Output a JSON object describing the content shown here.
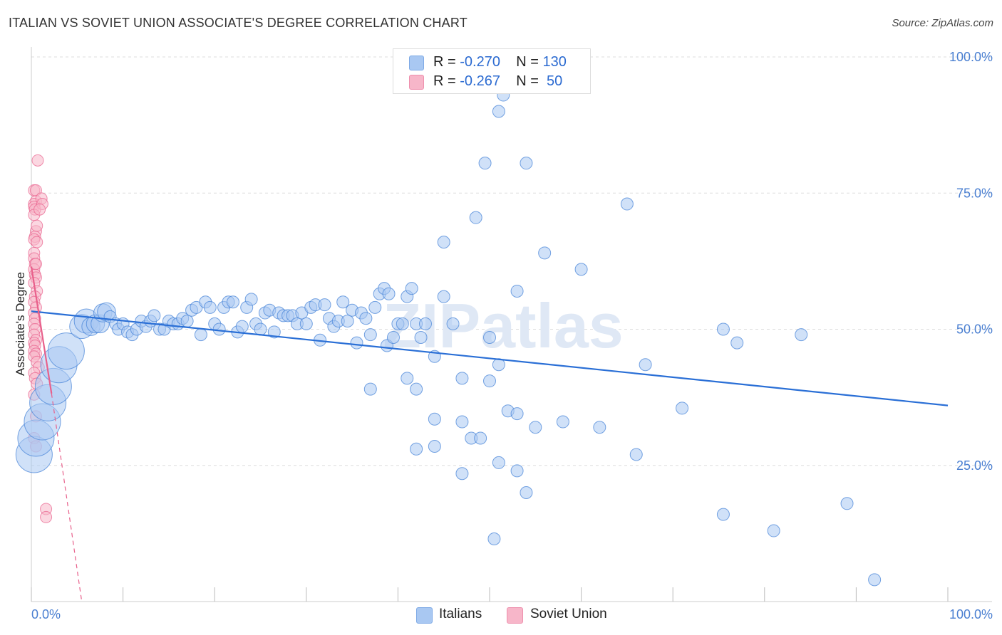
{
  "title": "ITALIAN VS SOVIET UNION ASSOCIATE'S DEGREE CORRELATION CHART",
  "source": "Source: ZipAtlas.com",
  "watermark": "ZIPatlas",
  "legend": {
    "rows": [
      {
        "r_label": "R =",
        "r_value": "-0.270",
        "n_label": "N =",
        "n_value": "130",
        "color": "#a9c8f2"
      },
      {
        "r_label": "R =",
        "r_value": "-0.267",
        "n_label": "N =",
        "n_value": " 50",
        "color": "#f7b6c9"
      }
    ]
  },
  "bottom_legend": [
    {
      "label": "Italians",
      "color": "#a9c8f2"
    },
    {
      "label": "Soviet Union",
      "color": "#f7b6c9"
    }
  ],
  "chart_data": {
    "type": "scatter",
    "title": "ITALIAN VS SOVIET UNION ASSOCIATE'S DEGREE CORRELATION CHART",
    "xlabel": "",
    "ylabel": "Associate's Degree",
    "xlim": [
      0,
      100
    ],
    "ylim": [
      0,
      100
    ],
    "x_tick_labels": [
      "0.0%",
      "100.0%"
    ],
    "y_tick_labels": [
      "25.0%",
      "50.0%",
      "75.0%",
      "100.0%"
    ],
    "y_tick_values": [
      25,
      50,
      75,
      100
    ],
    "grid": true,
    "series": [
      {
        "name": "Italians",
        "color": "#4a86d8",
        "fill": "#a9c8f2",
        "trend": {
          "x": [
            0,
            100
          ],
          "y": [
            53.3,
            36.0
          ]
        },
        "points": [
          [
            0.3,
            27,
            3
          ],
          [
            0.5,
            30,
            3
          ],
          [
            1.2,
            33,
            3
          ],
          [
            1.8,
            36.5,
            3
          ],
          [
            2.4,
            39.5,
            3
          ],
          [
            3.0,
            43.5,
            3
          ],
          [
            3.8,
            46,
            3
          ],
          [
            5.5,
            50.5,
            2
          ],
          [
            6,
            51.5,
            2
          ],
          [
            6.5,
            50.5,
            1.5
          ],
          [
            7,
            51,
            1.5
          ],
          [
            7.5,
            51,
            1.5
          ],
          [
            7.8,
            53,
            1.5
          ],
          [
            8.2,
            53.2,
            1.5
          ],
          [
            8.6,
            52.3,
            1
          ],
          [
            9.2,
            51,
            1
          ],
          [
            9.5,
            50,
            1
          ],
          [
            10,
            51,
            1
          ],
          [
            10.5,
            49.5,
            1
          ],
          [
            11,
            49,
            1
          ],
          [
            11.5,
            50,
            1
          ],
          [
            12,
            51.5,
            1
          ],
          [
            12.5,
            50.5,
            1
          ],
          [
            13,
            51.5,
            1
          ],
          [
            13.4,
            52.5,
            1
          ],
          [
            14,
            50,
            1
          ],
          [
            14.5,
            50,
            1
          ],
          [
            15,
            51.5,
            1
          ],
          [
            15.5,
            51,
            1
          ],
          [
            16,
            51,
            1
          ],
          [
            16.5,
            52,
            1
          ],
          [
            17,
            51.5,
            1
          ],
          [
            17.5,
            53.5,
            1
          ],
          [
            18,
            54,
            1
          ],
          [
            18.5,
            49,
            1
          ],
          [
            19,
            55,
            1
          ],
          [
            19.5,
            54,
            1
          ],
          [
            20,
            51,
            1
          ],
          [
            20.5,
            50,
            1
          ],
          [
            21,
            54,
            1
          ],
          [
            21.5,
            55,
            1
          ],
          [
            22,
            55,
            1
          ],
          [
            22.5,
            49.5,
            1
          ],
          [
            23,
            50.5,
            1
          ],
          [
            23.5,
            54,
            1
          ],
          [
            24,
            55.5,
            1
          ],
          [
            24.5,
            51,
            1
          ],
          [
            25,
            50,
            1
          ],
          [
            25.5,
            53,
            1
          ],
          [
            26,
            53.5,
            1
          ],
          [
            26.5,
            49.5,
            1
          ],
          [
            27,
            53,
            1
          ],
          [
            27.5,
            52.5,
            1
          ],
          [
            28,
            52.5,
            1
          ],
          [
            28.5,
            52.5,
            1
          ],
          [
            29,
            51,
            1
          ],
          [
            29.5,
            53,
            1
          ],
          [
            30,
            51,
            1
          ],
          [
            30.5,
            54,
            1
          ],
          [
            31,
            54.5,
            1
          ],
          [
            31.5,
            48,
            1
          ],
          [
            32,
            54.5,
            1
          ],
          [
            32.5,
            52,
            1
          ],
          [
            33,
            50.5,
            1
          ],
          [
            33.5,
            51.5,
            1
          ],
          [
            34,
            55,
            1
          ],
          [
            34.5,
            51.5,
            1
          ],
          [
            35,
            53.5,
            1
          ],
          [
            35.5,
            47.5,
            1
          ],
          [
            36,
            53,
            1
          ],
          [
            36.5,
            52,
            1
          ],
          [
            37,
            49,
            1
          ],
          [
            37.5,
            54,
            1
          ],
          [
            38,
            56.5,
            1
          ],
          [
            38.5,
            57.5,
            1
          ],
          [
            38.8,
            47,
            1
          ],
          [
            39,
            56.5,
            1
          ],
          [
            39.5,
            48.5,
            1
          ],
          [
            40,
            51,
            1
          ],
          [
            40.5,
            51,
            1
          ],
          [
            41,
            56,
            1
          ],
          [
            41.5,
            57.5,
            1
          ],
          [
            42,
            51,
            1
          ],
          [
            42.5,
            48.5,
            1
          ],
          [
            43,
            51,
            1
          ],
          [
            44,
            45,
            1
          ],
          [
            45,
            56,
            1
          ],
          [
            46,
            51,
            1
          ],
          [
            37,
            39,
            1
          ],
          [
            41,
            41,
            1
          ],
          [
            42,
            39,
            1
          ],
          [
            47,
            41,
            1
          ],
          [
            50,
            40.5,
            1
          ],
          [
            50,
            48.5,
            1
          ],
          [
            51,
            43.5,
            1
          ],
          [
            44,
            33.5,
            1
          ],
          [
            47,
            33,
            1
          ],
          [
            48,
            30,
            1
          ],
          [
            49,
            30,
            1
          ],
          [
            52,
            35,
            1
          ],
          [
            53,
            34.5,
            1
          ],
          [
            55,
            32,
            1
          ],
          [
            58,
            33,
            1
          ],
          [
            62,
            32,
            1
          ],
          [
            66,
            27,
            1
          ],
          [
            44,
            28.5,
            1
          ],
          [
            42,
            28,
            1
          ],
          [
            47,
            23.5,
            1
          ],
          [
            51,
            25.5,
            1
          ],
          [
            53,
            24,
            1
          ],
          [
            54,
            20,
            1
          ],
          [
            50.5,
            11.5,
            1
          ],
          [
            75.5,
            16,
            1
          ],
          [
            81,
            13,
            1
          ],
          [
            89,
            18,
            1
          ],
          [
            92,
            4,
            1
          ],
          [
            67,
            43.5,
            1
          ],
          [
            71,
            35.5,
            1
          ],
          [
            75.5,
            50,
            1
          ],
          [
            77,
            47.5,
            1
          ],
          [
            84,
            49,
            1
          ],
          [
            65,
            73,
            1
          ],
          [
            60,
            61,
            1
          ],
          [
            53,
            57,
            1
          ],
          [
            49.5,
            80.5,
            1
          ],
          [
            54,
            80.5,
            1
          ],
          [
            51.5,
            93,
            1
          ],
          [
            51,
            90,
            1
          ],
          [
            48.5,
            70.5,
            1
          ],
          [
            45,
            66,
            1
          ],
          [
            56,
            64,
            1
          ]
        ]
      },
      {
        "name": "Soviet Union",
        "color": "#e8608b",
        "fill": "#f7b6c9",
        "trend": {
          "x": [
            0,
            2.2
          ],
          "y": [
            61.5,
            38.2
          ]
        },
        "trend_dashed": {
          "x": [
            2.2,
            5.5
          ],
          "y": [
            38.2,
            0
          ]
        },
        "points": [
          [
            0.3,
            75.5
          ],
          [
            0.5,
            75.5
          ],
          [
            0.5,
            73.5
          ],
          [
            0.3,
            73
          ],
          [
            0.3,
            72.5
          ],
          [
            0.4,
            72
          ],
          [
            0.3,
            71
          ],
          [
            0.5,
            68
          ],
          [
            0.4,
            67
          ],
          [
            0.3,
            66.5
          ],
          [
            0.6,
            66
          ],
          [
            0.3,
            64
          ],
          [
            0.3,
            63
          ],
          [
            0.4,
            62
          ],
          [
            0.3,
            61
          ],
          [
            0.4,
            60
          ],
          [
            0.5,
            59.5
          ],
          [
            0.3,
            58.5
          ],
          [
            0.6,
            57
          ],
          [
            0.4,
            56
          ],
          [
            0.3,
            55
          ],
          [
            0.5,
            54
          ],
          [
            0.3,
            53
          ],
          [
            0.4,
            52
          ],
          [
            0.3,
            51
          ],
          [
            0.4,
            50
          ],
          [
            0.3,
            49
          ],
          [
            0.5,
            48
          ],
          [
            0.3,
            47.5
          ],
          [
            0.4,
            47
          ],
          [
            0.3,
            46
          ],
          [
            0.5,
            45.5
          ],
          [
            0.3,
            45
          ],
          [
            0.6,
            44
          ],
          [
            0.8,
            43
          ],
          [
            0.3,
            42
          ],
          [
            0.4,
            41
          ],
          [
            0.6,
            40
          ],
          [
            0.3,
            38
          ],
          [
            0.5,
            34
          ],
          [
            0.3,
            30
          ],
          [
            0.5,
            28.5
          ],
          [
            0.7,
            81
          ],
          [
            0.6,
            69
          ],
          [
            1.1,
            74
          ],
          [
            1.2,
            73
          ],
          [
            0.9,
            72
          ],
          [
            1.6,
            17
          ],
          [
            1.6,
            15.5
          ],
          [
            0.5,
            62
          ]
        ]
      }
    ]
  }
}
